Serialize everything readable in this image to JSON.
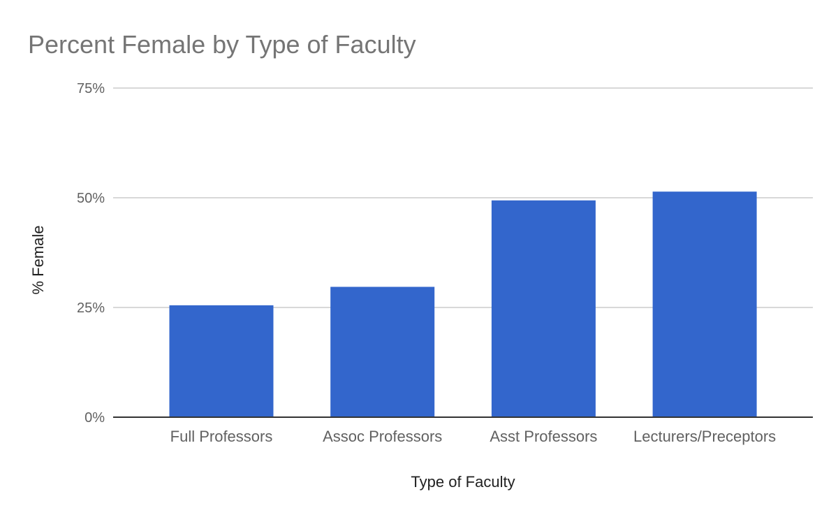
{
  "chart_data": {
    "type": "bar",
    "title": "Percent Female by Type of Faculty",
    "xlabel": "Type of Faculty",
    "ylabel": "% Female",
    "categories": [
      "Full Professors",
      "Assoc Professors",
      "Asst Professors",
      "Lecturers/Preceptors"
    ],
    "values": [
      25.5,
      29.7,
      49.4,
      51.4
    ],
    "ylim": [
      0,
      75
    ],
    "yticks": [
      0,
      25,
      50,
      75
    ],
    "ytick_labels": [
      "0%",
      "25%",
      "50%",
      "75%"
    ],
    "grid": true,
    "legend": "none",
    "bar_color": "#3366cc"
  }
}
